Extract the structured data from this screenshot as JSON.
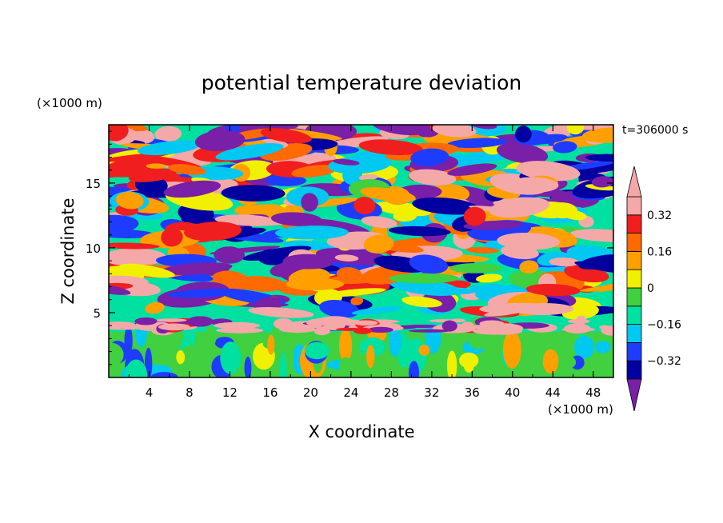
{
  "chart_data": {
    "type": "heatmap",
    "title": "potential temperature deviation",
    "xlabel": "X coordinate",
    "ylabel": "Z coordinate",
    "x_unit": "(×1000 m)",
    "y_unit": "(×1000 m)",
    "time_label": "t=306000 s",
    "xlim": [
      0,
      50
    ],
    "ylim": [
      0,
      19.5
    ],
    "x_ticks": [
      4,
      8,
      12,
      16,
      20,
      24,
      28,
      32,
      36,
      40,
      44,
      48
    ],
    "x_tick_labels": [
      "4",
      "8",
      "12",
      "16",
      "20",
      "24",
      "28",
      "32",
      "36",
      "40",
      "44",
      "48"
    ],
    "y_ticks": [
      5,
      10,
      15
    ],
    "y_tick_labels": [
      "5",
      "10",
      "15"
    ],
    "colorbar": {
      "boundaries": [
        -0.4,
        -0.32,
        -0.24,
        -0.16,
        -0.08,
        0,
        0.08,
        0.16,
        0.24,
        0.32,
        0.4
      ],
      "colors": [
        "#7a1fa8",
        "#0000a0",
        "#1e3cff",
        "#00c8f0",
        "#00e0a0",
        "#40d040",
        "#f0f000",
        "#ffa000",
        "#ff6a00",
        "#f01e1e",
        "#f5a8a8"
      ],
      "under_color": "#7a1fa8",
      "over_color": "#f5a8a8",
      "tick_values": [
        -0.32,
        -0.16,
        0,
        0.16,
        0.32
      ],
      "tick_labels": [
        "−0.32",
        "−0.16",
        "0",
        "0.16",
        "0.32"
      ]
    },
    "field_summary": {
      "upper_layer_z_range": [
        5,
        19.5
      ],
      "upper_layer": "alternating strong positive and negative layered anomalies",
      "interface_z": 4,
      "interface": "thin strong positive band near z≈4",
      "lower_layer_z_range": [
        0,
        3.5
      ],
      "lower_layer": "weak positive values with vertical plume-like structures"
    }
  }
}
